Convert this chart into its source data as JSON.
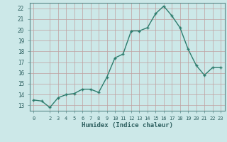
{
  "x": [
    0,
    1,
    2,
    3,
    4,
    5,
    6,
    7,
    8,
    9,
    10,
    11,
    12,
    13,
    14,
    15,
    16,
    17,
    18,
    19,
    20,
    21,
    22,
    23
  ],
  "y": [
    13.5,
    13.4,
    12.8,
    13.7,
    14.0,
    14.1,
    14.5,
    14.5,
    14.2,
    15.6,
    17.4,
    17.75,
    19.9,
    19.9,
    20.2,
    21.5,
    22.2,
    21.3,
    20.2,
    18.2,
    16.7,
    15.8,
    16.5,
    16.5
  ],
  "xlabel": "Humidex (Indice chaleur)",
  "ylim": [
    12.5,
    22.5
  ],
  "xlim": [
    -0.5,
    23.5
  ],
  "yticks": [
    13,
    14,
    15,
    16,
    17,
    18,
    19,
    20,
    21,
    22
  ],
  "xticks": [
    0,
    2,
    3,
    4,
    5,
    6,
    7,
    8,
    9,
    10,
    11,
    12,
    13,
    14,
    15,
    16,
    17,
    18,
    19,
    20,
    21,
    22,
    23
  ],
  "line_color": "#2e7d6e",
  "bg_color": "#cce8e8",
  "grid_color": "#c0a0a0",
  "tick_color": "#2e6060",
  "label_color": "#2e6060",
  "spine_color": "#5a8a8a"
}
